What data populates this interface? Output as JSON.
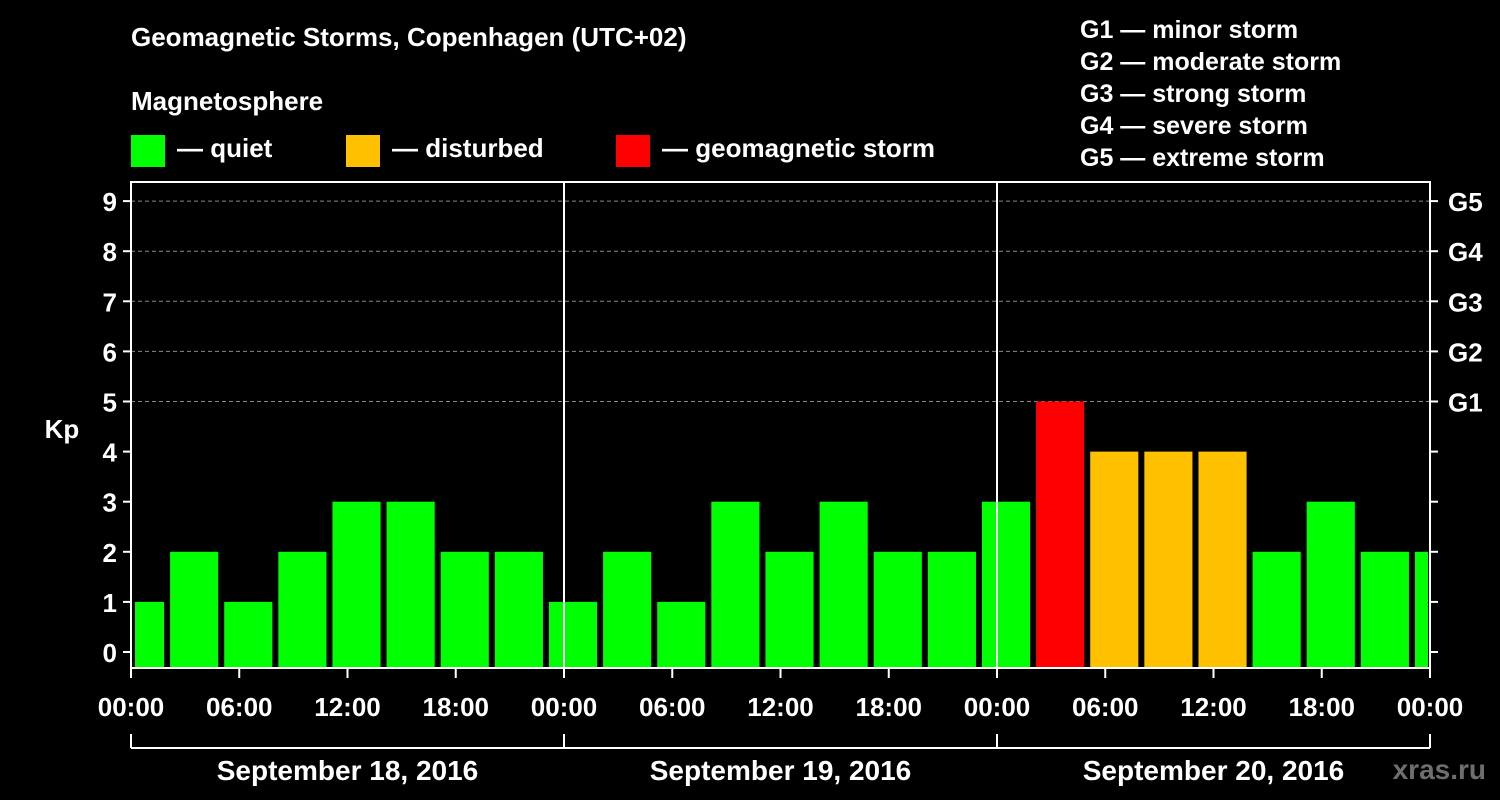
{
  "title": "Geomagnetic Storms, Copenhagen (UTC+02)",
  "magnetosphere_title": "Magnetosphere",
  "legend": [
    {
      "label": "— quiet",
      "color": "#00ff00"
    },
    {
      "label": "— disturbed",
      "color": "#ffc000"
    },
    {
      "label": "— geomagnetic storm",
      "color": "#ff0000"
    }
  ],
  "g_scale_legend": [
    "G1 — minor storm",
    "G2 — moderate storm",
    "G3 — strong storm",
    "G4 — severe storm",
    "G5 — extreme storm"
  ],
  "watermark": "xras.ru",
  "colors": {
    "quiet": "#00ff00",
    "disturbed": "#ffc000",
    "storm": "#ff0000",
    "background": "#000000",
    "axis": "#ffffff",
    "grid": "#888888"
  },
  "chart_data": {
    "type": "bar",
    "ylabel": "Kp",
    "ylim": [
      0,
      9
    ],
    "y_ticks": [
      "0",
      "1",
      "2",
      "3",
      "4",
      "5",
      "6",
      "7",
      "8",
      "9"
    ],
    "right_ticks": [
      {
        "kp": 5,
        "label": "G1"
      },
      {
        "kp": 6,
        "label": "G2"
      },
      {
        "kp": 7,
        "label": "G3"
      },
      {
        "kp": 8,
        "label": "G4"
      },
      {
        "kp": 9,
        "label": "G5"
      }
    ],
    "x_hours_range": [
      0,
      72
    ],
    "x_ticks": [
      "00:00",
      "06:00",
      "12:00",
      "18:00",
      "00:00",
      "06:00",
      "12:00",
      "18:00",
      "00:00",
      "06:00",
      "12:00",
      "18:00",
      "00:00"
    ],
    "days": [
      "September 18, 2016",
      "September 19, 2016",
      "September 20, 2016"
    ],
    "bars": [
      {
        "start": 0,
        "end": 2,
        "kp": 1,
        "level": "quiet"
      },
      {
        "start": 2,
        "end": 5,
        "kp": 2,
        "level": "quiet"
      },
      {
        "start": 5,
        "end": 8,
        "kp": 1,
        "level": "quiet"
      },
      {
        "start": 8,
        "end": 11,
        "kp": 2,
        "level": "quiet"
      },
      {
        "start": 11,
        "end": 14,
        "kp": 3,
        "level": "quiet"
      },
      {
        "start": 14,
        "end": 17,
        "kp": 3,
        "level": "quiet"
      },
      {
        "start": 17,
        "end": 20,
        "kp": 2,
        "level": "quiet"
      },
      {
        "start": 20,
        "end": 23,
        "kp": 2,
        "level": "quiet"
      },
      {
        "start": 23,
        "end": 26,
        "kp": 1,
        "level": "quiet"
      },
      {
        "start": 26,
        "end": 29,
        "kp": 2,
        "level": "quiet"
      },
      {
        "start": 29,
        "end": 32,
        "kp": 1,
        "level": "quiet"
      },
      {
        "start": 32,
        "end": 35,
        "kp": 3,
        "level": "quiet"
      },
      {
        "start": 35,
        "end": 38,
        "kp": 2,
        "level": "quiet"
      },
      {
        "start": 38,
        "end": 41,
        "kp": 3,
        "level": "quiet"
      },
      {
        "start": 41,
        "end": 44,
        "kp": 2,
        "level": "quiet"
      },
      {
        "start": 44,
        "end": 47,
        "kp": 2,
        "level": "quiet"
      },
      {
        "start": 47,
        "end": 50,
        "kp": 3,
        "level": "quiet"
      },
      {
        "start": 50,
        "end": 53,
        "kp": 5,
        "level": "storm"
      },
      {
        "start": 53,
        "end": 56,
        "kp": 4,
        "level": "disturbed"
      },
      {
        "start": 56,
        "end": 59,
        "kp": 4,
        "level": "disturbed"
      },
      {
        "start": 59,
        "end": 62,
        "kp": 4,
        "level": "disturbed"
      },
      {
        "start": 62,
        "end": 65,
        "kp": 2,
        "level": "quiet"
      },
      {
        "start": 65,
        "end": 68,
        "kp": 3,
        "level": "quiet"
      },
      {
        "start": 68,
        "end": 71,
        "kp": 2,
        "level": "quiet"
      },
      {
        "start": 71,
        "end": 72,
        "kp": 2,
        "level": "quiet"
      }
    ]
  }
}
